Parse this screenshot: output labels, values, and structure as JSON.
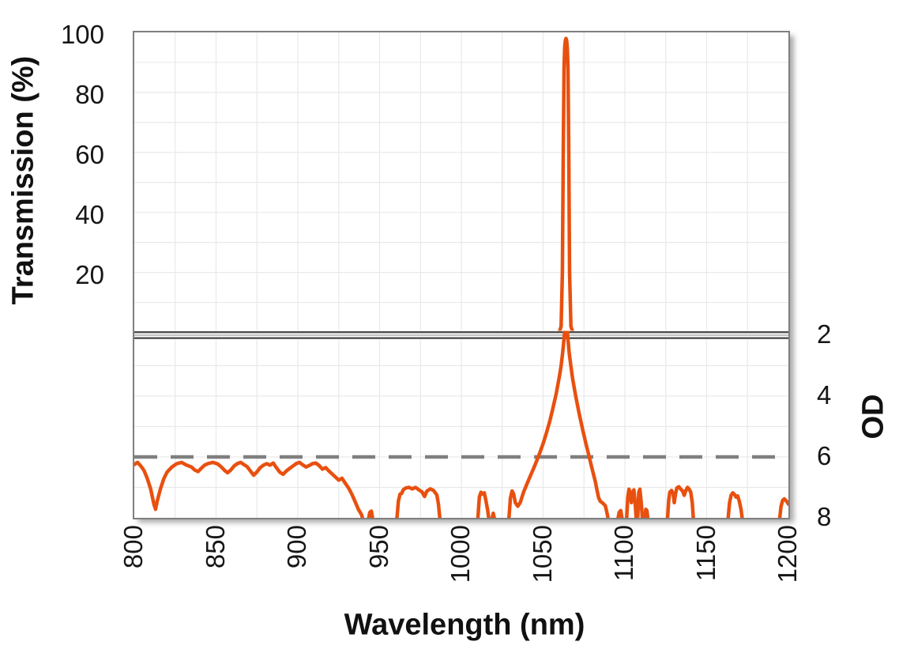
{
  "chart_data": {
    "type": "line",
    "title": "",
    "x": {
      "label": "Wavelength (nm)",
      "min": 800,
      "max": 1200,
      "tick_step": 50,
      "grid_step": 25,
      "ticks": [
        "800",
        "850",
        "900",
        "950",
        "1000",
        "1050",
        "1100",
        "1150",
        "1200"
      ],
      "tick_values": [
        800,
        850,
        900,
        950,
        1000,
        1050,
        1100,
        1150,
        1200
      ]
    },
    "panels": [
      {
        "name": "transmission",
        "axis_side": "left",
        "label": "Transmission (%)",
        "min": 0,
        "max": 100,
        "grid_step": 10,
        "ticks": [
          "100",
          "80",
          "60",
          "40",
          "20"
        ],
        "tick_values": [
          100,
          80,
          60,
          40,
          20
        ]
      },
      {
        "name": "od",
        "axis_side": "right",
        "label": "OD",
        "min": 2,
        "max": 8,
        "inverted": true,
        "grid_step": 1,
        "ticks": [
          "2",
          "4",
          "6",
          "8"
        ],
        "tick_values": [
          2,
          4,
          6,
          8
        ]
      }
    ],
    "axis_break": true,
    "colors": {
      "line": "#E8500F",
      "grid": "#E9E9E9",
      "axis": "#7F7F7F",
      "dash": "#7F7F7F",
      "text": "#161616",
      "break_line": "#4D4D4D"
    },
    "annotations": [
      {
        "name": "od-6-reference",
        "panel": "od",
        "value": 6,
        "style": "dashed",
        "color": "#7F7F7F"
      }
    ],
    "series": [
      {
        "name": "transmission-peak",
        "panel": "transmission",
        "color": "#E8500F",
        "points": [
          [
            1060,
            0.3
          ],
          [
            1061,
            2
          ],
          [
            1061.8,
            20
          ],
          [
            1062.3,
            60
          ],
          [
            1062.8,
            88
          ],
          [
            1063.2,
            95
          ],
          [
            1063.6,
            97.3
          ],
          [
            1064,
            98
          ],
          [
            1064.4,
            97.3
          ],
          [
            1064.8,
            95
          ],
          [
            1065.2,
            88
          ],
          [
            1065.7,
            60
          ],
          [
            1066.2,
            20
          ],
          [
            1067,
            2
          ],
          [
            1068,
            0.3
          ]
        ]
      },
      {
        "name": "od-blocking",
        "panel": "od",
        "color": "#E8500F",
        "segments": [
          [
            [
              800,
              6.25
            ],
            [
              802,
              6.18
            ],
            [
              804,
              6.3
            ],
            [
              806,
              6.45
            ],
            [
              808,
              6.72
            ],
            [
              810,
              7.05
            ],
            [
              812,
              7.55
            ],
            [
              813,
              7.72
            ],
            [
              814,
              7.45
            ],
            [
              816,
              7.05
            ],
            [
              818,
              6.72
            ],
            [
              820,
              6.5
            ],
            [
              823,
              6.33
            ],
            [
              826,
              6.22
            ],
            [
              829,
              6.18
            ],
            [
              832,
              6.27
            ],
            [
              835,
              6.33
            ],
            [
              837,
              6.43
            ],
            [
              839,
              6.48
            ],
            [
              841,
              6.37
            ],
            [
              843,
              6.27
            ],
            [
              845,
              6.22
            ],
            [
              848,
              6.18
            ],
            [
              851,
              6.23
            ],
            [
              853,
              6.32
            ],
            [
              855,
              6.43
            ],
            [
              857,
              6.52
            ],
            [
              859,
              6.43
            ],
            [
              861,
              6.3
            ],
            [
              863,
              6.22
            ],
            [
              865,
              6.18
            ],
            [
              867,
              6.25
            ],
            [
              869,
              6.32
            ],
            [
              871,
              6.46
            ],
            [
              873,
              6.6
            ],
            [
              875,
              6.49
            ],
            [
              877,
              6.35
            ],
            [
              879,
              6.27
            ],
            [
              881,
              6.22
            ],
            [
              883,
              6.27
            ],
            [
              885,
              6.2
            ],
            [
              887,
              6.36
            ],
            [
              889,
              6.5
            ],
            [
              891,
              6.57
            ],
            [
              893,
              6.46
            ],
            [
              895,
              6.38
            ],
            [
              897,
              6.3
            ],
            [
              899,
              6.22
            ],
            [
              901,
              6.18
            ],
            [
              903,
              6.26
            ],
            [
              905,
              6.33
            ],
            [
              907,
              6.28
            ],
            [
              909,
              6.22
            ],
            [
              911,
              6.2
            ],
            [
              913,
              6.28
            ],
            [
              915,
              6.4
            ],
            [
              917,
              6.35
            ],
            [
              919,
              6.46
            ],
            [
              921,
              6.56
            ],
            [
              923,
              6.66
            ],
            [
              925,
              6.76
            ],
            [
              927,
              6.7
            ],
            [
              929,
              6.86
            ],
            [
              931,
              7.02
            ],
            [
              933,
              7.22
            ],
            [
              935,
              7.46
            ],
            [
              937,
              7.72
            ],
            [
              939,
              7.9
            ],
            [
              940,
              8.1
            ]
          ],
          [
            [
              943,
              8.1
            ],
            [
              944,
              7.82
            ],
            [
              945,
              7.78
            ],
            [
              946,
              8.1
            ]
          ],
          [
            [
              960.5,
              8.1
            ],
            [
              961.5,
              7.45
            ],
            [
              962.5,
              7.22
            ],
            [
              963.5,
              7.2
            ],
            [
              964.5,
              7.08
            ],
            [
              966,
              7.02
            ],
            [
              968,
              7.0
            ],
            [
              970,
              7.05
            ],
            [
              972,
              7.0
            ],
            [
              974,
              7.08
            ],
            [
              976,
              7.15
            ],
            [
              977.5,
              7.3
            ],
            [
              979,
              7.12
            ],
            [
              981,
              7.05
            ],
            [
              983,
              7.1
            ],
            [
              985,
              7.25
            ],
            [
              986,
              7.55
            ],
            [
              987,
              8.1
            ]
          ],
          [
            [
              1010,
              8.1
            ],
            [
              1011,
              7.32
            ],
            [
              1012,
              7.16
            ],
            [
              1013,
              7.22
            ],
            [
              1014,
              7.18
            ],
            [
              1015,
              7.42
            ],
            [
              1016,
              7.72
            ],
            [
              1017,
              8.1
            ]
          ],
          [
            [
              1018.5,
              8.1
            ],
            [
              1019.5,
              7.85
            ],
            [
              1020.5,
              8.1
            ]
          ],
          [
            [
              1029,
              8.1
            ],
            [
              1030,
              7.35
            ],
            [
              1031,
              7.12
            ],
            [
              1032,
              7.22
            ],
            [
              1033,
              7.5
            ],
            [
              1034.5,
              7.62
            ],
            [
              1036,
              7.5
            ],
            [
              1038,
              7.16
            ],
            [
              1040,
              6.9
            ],
            [
              1042,
              6.65
            ],
            [
              1044,
              6.4
            ],
            [
              1046,
              6.14
            ],
            [
              1048,
              5.86
            ],
            [
              1050,
              5.56
            ],
            [
              1052,
              5.22
            ],
            [
              1054,
              4.84
            ],
            [
              1056,
              4.4
            ],
            [
              1058,
              3.92
            ],
            [
              1060,
              3.34
            ],
            [
              1061,
              3.0
            ],
            [
              1062,
              2.56
            ],
            [
              1063,
              2.0
            ],
            [
              1063.5,
              1.6
            ],
            [
              1064.5,
              1.6
            ],
            [
              1065,
              2.0
            ],
            [
              1066,
              2.6
            ],
            [
              1067,
              3.02
            ],
            [
              1068,
              3.42
            ],
            [
              1070,
              4.02
            ],
            [
              1072,
              4.56
            ],
            [
              1074,
              5.06
            ],
            [
              1076,
              5.52
            ],
            [
              1078,
              5.96
            ],
            [
              1080,
              6.4
            ],
            [
              1082,
              6.82
            ],
            [
              1083,
              7.1
            ],
            [
              1084,
              7.35
            ],
            [
              1085,
              7.46
            ],
            [
              1086.5,
              7.52
            ],
            [
              1088,
              7.6
            ],
            [
              1089,
              7.82
            ],
            [
              1090,
              8.1
            ]
          ],
          [
            [
              1095.5,
              8.1
            ],
            [
              1096.5,
              7.82
            ],
            [
              1097.5,
              7.76
            ],
            [
              1098.5,
              8.1
            ]
          ],
          [
            [
              1101,
              8.1
            ],
            [
              1101.8,
              7.32
            ],
            [
              1102.5,
              7.06
            ],
            [
              1103.2,
              7.16
            ],
            [
              1104,
              7.5
            ],
            [
              1104.8,
              7.16
            ],
            [
              1105.5,
              7.08
            ],
            [
              1106.3,
              7.5
            ],
            [
              1107,
              8.1
            ]
          ],
          [
            [
              1107.8,
              8.1
            ],
            [
              1108.5,
              7.16
            ],
            [
              1109.2,
              7.06
            ],
            [
              1110,
              7.5
            ],
            [
              1110.8,
              8.1
            ]
          ],
          [
            [
              1112,
              8.1
            ],
            [
              1112.8,
              7.72
            ],
            [
              1113.5,
              7.76
            ],
            [
              1114.2,
              8.1
            ]
          ],
          [
            [
              1126,
              8.1
            ],
            [
              1126.8,
              7.42
            ],
            [
              1127.5,
              7.16
            ],
            [
              1128.5,
              7.1
            ],
            [
              1129.5,
              7.2
            ],
            [
              1130.2,
              7.5
            ],
            [
              1131,
              7.2
            ],
            [
              1131.8,
              7.02
            ],
            [
              1133,
              6.98
            ],
            [
              1134.2,
              7.06
            ],
            [
              1135.3,
              7.12
            ],
            [
              1136.3,
              7.26
            ],
            [
              1137.3,
              7.1
            ],
            [
              1138.3,
              7.0
            ],
            [
              1139.3,
              7.06
            ],
            [
              1140.3,
              7.16
            ],
            [
              1141.2,
              7.5
            ],
            [
              1142,
              8.1
            ]
          ],
          [
            [
              1163,
              8.1
            ],
            [
              1164,
              7.5
            ],
            [
              1165,
              7.26
            ],
            [
              1166,
              7.18
            ],
            [
              1167,
              7.23
            ],
            [
              1168,
              7.32
            ],
            [
              1169,
              7.28
            ],
            [
              1170,
              7.46
            ],
            [
              1171,
              7.72
            ],
            [
              1172,
              8.1
            ]
          ],
          [
            [
              1194.5,
              8.1
            ],
            [
              1195.5,
              7.62
            ],
            [
              1196.5,
              7.42
            ],
            [
              1197.5,
              7.38
            ],
            [
              1198.5,
              7.43
            ],
            [
              1199.5,
              7.5
            ],
            [
              1200,
              7.55
            ]
          ]
        ]
      }
    ]
  }
}
